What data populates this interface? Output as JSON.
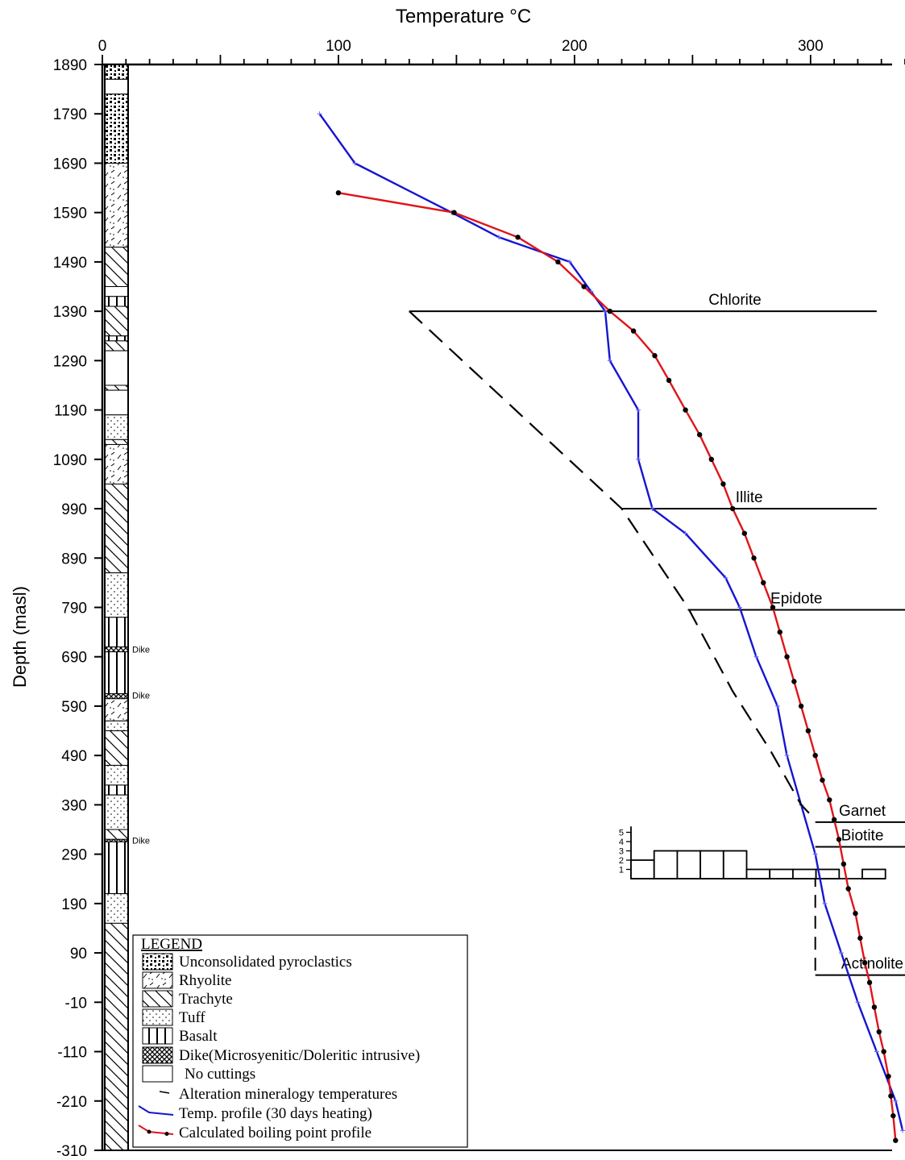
{
  "chart_data": {
    "type": "line",
    "xlabel": "Temperature °C",
    "ylabel": "Depth (masl)",
    "xlim": [
      0,
      340
    ],
    "ylim": [
      -310,
      1890
    ],
    "x_ticks": [
      0,
      100,
      200,
      300
    ],
    "y_ticks": [
      1890,
      1790,
      1690,
      1590,
      1490,
      1390,
      1290,
      1190,
      1090,
      990,
      890,
      790,
      690,
      590,
      490,
      390,
      290,
      190,
      90,
      -10,
      -110,
      -210,
      -310
    ],
    "series": [
      {
        "name": "Temp. profile (30 days heating)",
        "color": "#1515d0",
        "marker": "plus",
        "points": [
          [
            92,
            1790
          ],
          [
            107,
            1690
          ],
          [
            148,
            1590
          ],
          [
            168,
            1540
          ],
          [
            198,
            1490
          ],
          [
            207,
            1430
          ],
          [
            213,
            1390
          ],
          [
            215,
            1290
          ],
          [
            227,
            1190
          ],
          [
            227,
            1090
          ],
          [
            233,
            990
          ],
          [
            247,
            940
          ],
          [
            264,
            850
          ],
          [
            270,
            790
          ],
          [
            277,
            690
          ],
          [
            286,
            590
          ],
          [
            290,
            490
          ],
          [
            296,
            390
          ],
          [
            302,
            290
          ],
          [
            306,
            190
          ],
          [
            313,
            90
          ],
          [
            320,
            -10
          ],
          [
            328,
            -110
          ],
          [
            336,
            -210
          ],
          [
            339,
            -270
          ]
        ]
      },
      {
        "name": "Calculated boiling point profile",
        "color": "#e0141a",
        "marker": "dot",
        "points": [
          [
            100,
            1630
          ],
          [
            149,
            1590
          ],
          [
            176,
            1540
          ],
          [
            193,
            1490
          ],
          [
            204,
            1440
          ],
          [
            215,
            1390
          ],
          [
            225,
            1350
          ],
          [
            234,
            1300
          ],
          [
            240,
            1250
          ],
          [
            247,
            1190
          ],
          [
            253,
            1140
          ],
          [
            258,
            1090
          ],
          [
            263,
            1040
          ],
          [
            267,
            990
          ],
          [
            272,
            940
          ],
          [
            276,
            890
          ],
          [
            280,
            840
          ],
          [
            284,
            790
          ],
          [
            287,
            740
          ],
          [
            290,
            690
          ],
          [
            293,
            640
          ],
          [
            296,
            590
          ],
          [
            299,
            540
          ],
          [
            302,
            490
          ],
          [
            305,
            440
          ],
          [
            308,
            400
          ],
          [
            310,
            360
          ],
          [
            312,
            320
          ],
          [
            314,
            270
          ],
          [
            316,
            220
          ],
          [
            319,
            170
          ],
          [
            321,
            120
          ],
          [
            323,
            70
          ],
          [
            325,
            30
          ],
          [
            327,
            -20
          ],
          [
            329,
            -70
          ],
          [
            331,
            -110
          ],
          [
            333,
            -160
          ],
          [
            334,
            -200
          ],
          [
            335,
            -240
          ],
          [
            336,
            -290
          ]
        ]
      },
      {
        "name": "Alteration mineralogy temperatures",
        "color": "#000000",
        "style": "dashed",
        "points": [
          [
            130,
            1390
          ],
          [
            220,
            990
          ],
          [
            248,
            790
          ],
          [
            267,
            620
          ],
          [
            283,
            500
          ],
          [
            296,
            390
          ],
          [
            302,
            360
          ]
        ]
      }
    ],
    "mineral_lines": [
      {
        "name": "Chlorite",
        "x1": 130,
        "x2": 328,
        "depth": 1390
      },
      {
        "name": "Illite",
        "x1": 220,
        "x2": 328,
        "depth": 990
      },
      {
        "name": "Epidote",
        "x1": 248,
        "x2": 340,
        "depth": 785
      },
      {
        "name": "Garnet",
        "x1": 302,
        "x2": 340,
        "depth": 355
      },
      {
        "name": "Biotite",
        "x1": 302,
        "x2": 340,
        "depth": 305
      },
      {
        "name": "Actinolite",
        "x1": 302,
        "x2": 340,
        "depth": 45
      }
    ],
    "actinolite_dash": {
      "x": 302,
      "from": 250,
      "to": 45
    },
    "histogram": {
      "ticks": [
        "1",
        "2",
        "3",
        "4",
        "5"
      ],
      "x_start": 230,
      "bin_width": 10,
      "counts": [
        2,
        3,
        3,
        3,
        3,
        1,
        1,
        1,
        1,
        0,
        1
      ]
    },
    "lithology_column": [
      {
        "top": 1890,
        "bottom": 1860,
        "rock": "pyroclastics"
      },
      {
        "top": 1860,
        "bottom": 1830,
        "rock": "none"
      },
      {
        "top": 1830,
        "bottom": 1690,
        "rock": "pyroclastics"
      },
      {
        "top": 1690,
        "bottom": 1520,
        "rock": "rhyolite"
      },
      {
        "top": 1520,
        "bottom": 1440,
        "rock": "trachyte"
      },
      {
        "top": 1440,
        "bottom": 1420,
        "rock": "none"
      },
      {
        "top": 1420,
        "bottom": 1400,
        "rock": "basalt"
      },
      {
        "top": 1400,
        "bottom": 1340,
        "rock": "trachyte"
      },
      {
        "top": 1340,
        "bottom": 1330,
        "rock": "basalt"
      },
      {
        "top": 1330,
        "bottom": 1310,
        "rock": "trachyte"
      },
      {
        "top": 1310,
        "bottom": 1240,
        "rock": "none"
      },
      {
        "top": 1240,
        "bottom": 1230,
        "rock": "trachyte"
      },
      {
        "top": 1230,
        "bottom": 1180,
        "rock": "none"
      },
      {
        "top": 1180,
        "bottom": 1130,
        "rock": "tuff"
      },
      {
        "top": 1130,
        "bottom": 1120,
        "rock": "trachyte"
      },
      {
        "top": 1120,
        "bottom": 1040,
        "rock": "rhyolite"
      },
      {
        "top": 1040,
        "bottom": 860,
        "rock": "trachyte"
      },
      {
        "top": 860,
        "bottom": 770,
        "rock": "tuff"
      },
      {
        "top": 770,
        "bottom": 710,
        "rock": "basalt"
      },
      {
        "top": 710,
        "bottom": 700,
        "rock": "dike"
      },
      {
        "top": 700,
        "bottom": 615,
        "rock": "basalt"
      },
      {
        "top": 615,
        "bottom": 605,
        "rock": "dike"
      },
      {
        "top": 605,
        "bottom": 560,
        "rock": "rhyolite"
      },
      {
        "top": 560,
        "bottom": 540,
        "rock": "tuff"
      },
      {
        "top": 540,
        "bottom": 470,
        "rock": "trachyte"
      },
      {
        "top": 470,
        "bottom": 430,
        "rock": "tuff"
      },
      {
        "top": 430,
        "bottom": 410,
        "rock": "basalt"
      },
      {
        "top": 410,
        "bottom": 340,
        "rock": "tuff"
      },
      {
        "top": 340,
        "bottom": 320,
        "rock": "trachyte"
      },
      {
        "top": 320,
        "bottom": 315,
        "rock": "dike"
      },
      {
        "top": 315,
        "bottom": 210,
        "rock": "basalt"
      },
      {
        "top": 210,
        "bottom": 150,
        "rock": "tuff"
      },
      {
        "top": 150,
        "bottom": -310,
        "rock": "trachyte"
      }
    ],
    "dike_labels": [
      {
        "text": "Dike",
        "depth": 705
      },
      {
        "text": "Dike",
        "depth": 612
      },
      {
        "text": "Dike",
        "depth": 318
      }
    ],
    "legend": {
      "title": "LEGEND",
      "items": [
        {
          "label": "Unconsolidated pyroclastics",
          "swatch": "pyroclastics"
        },
        {
          "label": "Rhyolite",
          "swatch": "rhyolite"
        },
        {
          "label": "Trachyte",
          "swatch": "trachyte"
        },
        {
          "label": "Tuff",
          "swatch": "tuff"
        },
        {
          "label": "Basalt",
          "swatch": "basalt"
        },
        {
          "label": "Dike(Microsyenitic/Doleritic intrusive)",
          "swatch": "dike"
        },
        {
          "label": "No cuttings",
          "swatch": "none"
        },
        {
          "label": "Alteration mineralogy temperatures",
          "swatch": "dash-line"
        },
        {
          "label": "Temp. profile (30 days heating)",
          "swatch": "blue-line"
        },
        {
          "label": "Calculated boiling point profile",
          "swatch": "red-line"
        }
      ]
    }
  }
}
